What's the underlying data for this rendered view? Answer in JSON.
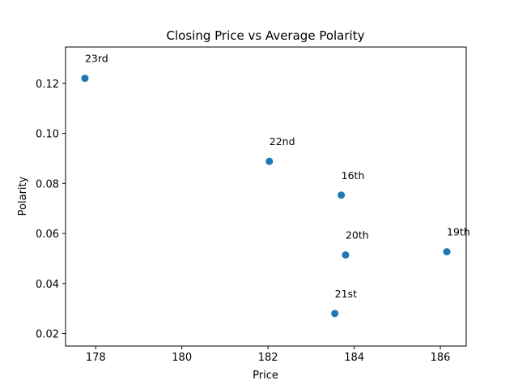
{
  "chart_data": {
    "type": "scatter",
    "title": "Closing Price vs Average Polarity",
    "xlabel": "Price",
    "ylabel": "Polarity",
    "xlim": [
      177.3,
      186.6
    ],
    "ylim": [
      0.015,
      0.1345
    ],
    "xticks": [
      178,
      180,
      182,
      184,
      186
    ],
    "yticks": [
      0.02,
      0.04,
      0.06,
      0.08,
      0.1,
      0.12
    ],
    "ytick_labels": [
      "0.02",
      "0.04",
      "0.06",
      "0.08",
      "0.10",
      "0.12"
    ],
    "grid": false,
    "marker_color": "#1f77b4",
    "points": [
      {
        "label": "23rd",
        "x": 177.75,
        "y": 0.122
      },
      {
        "label": "22nd",
        "x": 182.03,
        "y": 0.0888
      },
      {
        "label": "16th",
        "x": 183.7,
        "y": 0.0753
      },
      {
        "label": "20th",
        "x": 183.8,
        "y": 0.0514
      },
      {
        "label": "21st",
        "x": 183.55,
        "y": 0.028
      },
      {
        "label": "19th",
        "x": 186.15,
        "y": 0.0527
      }
    ]
  }
}
